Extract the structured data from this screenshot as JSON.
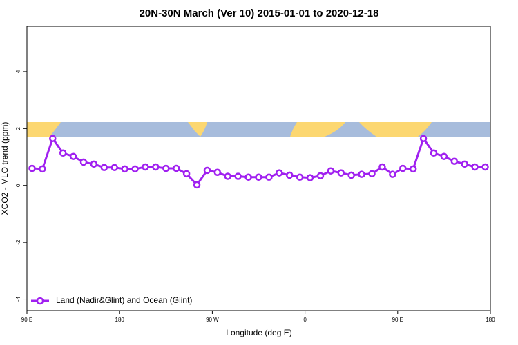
{
  "chart_data": {
    "type": "line",
    "title": "20N-30N March (Ver 10)   2015-01-01 to 2020-12-18",
    "x_label": "Longitude (deg E)",
    "y_label": "XCO2 - MLO trend (ppm)",
    "x": [
      95,
      105,
      115,
      125,
      135,
      145,
      155,
      165,
      175,
      185,
      195,
      205,
      215,
      225,
      235,
      245,
      255,
      265,
      275,
      285,
      295,
      305,
      315,
      325,
      335,
      345,
      355,
      365,
      375,
      385,
      395,
      405,
      415,
      425,
      435,
      445,
      455,
      465,
      475,
      485,
      495,
      505,
      515,
      525,
      535
    ],
    "series": [
      {
        "name": "Land (Nadir&Glint) and Ocean (Glint)",
        "color": "#a020f0",
        "values": [
          0.6,
          0.58,
          1.65,
          1.14,
          1.02,
          0.82,
          0.75,
          0.63,
          0.63,
          0.58,
          0.58,
          0.65,
          0.65,
          0.6,
          0.6,
          0.41,
          0.02,
          0.53,
          0.46,
          0.32,
          0.32,
          0.29,
          0.29,
          0.29,
          0.44,
          0.36,
          0.29,
          0.27,
          0.34,
          0.51,
          0.44,
          0.36,
          0.39,
          0.41,
          0.65,
          0.39,
          0.6,
          0.58,
          1.65,
          1.14,
          1.02,
          0.85,
          0.75,
          0.65,
          0.65
        ]
      }
    ],
    "xlim": [
      90,
      540
    ],
    "ylim": [
      -4.4,
      5.6
    ],
    "xticks": [
      {
        "value": 90,
        "label": "90 E"
      },
      180,
      {
        "value": 270,
        "label": "90 W"
      },
      {
        "value": 360,
        "label": "0"
      },
      {
        "value": 450,
        "label": "90 E"
      },
      {
        "value": 540,
        "label": "180"
      }
    ],
    "yticks": [
      -4,
      -2,
      0,
      2,
      4
    ],
    "legend": "bottom-left"
  }
}
